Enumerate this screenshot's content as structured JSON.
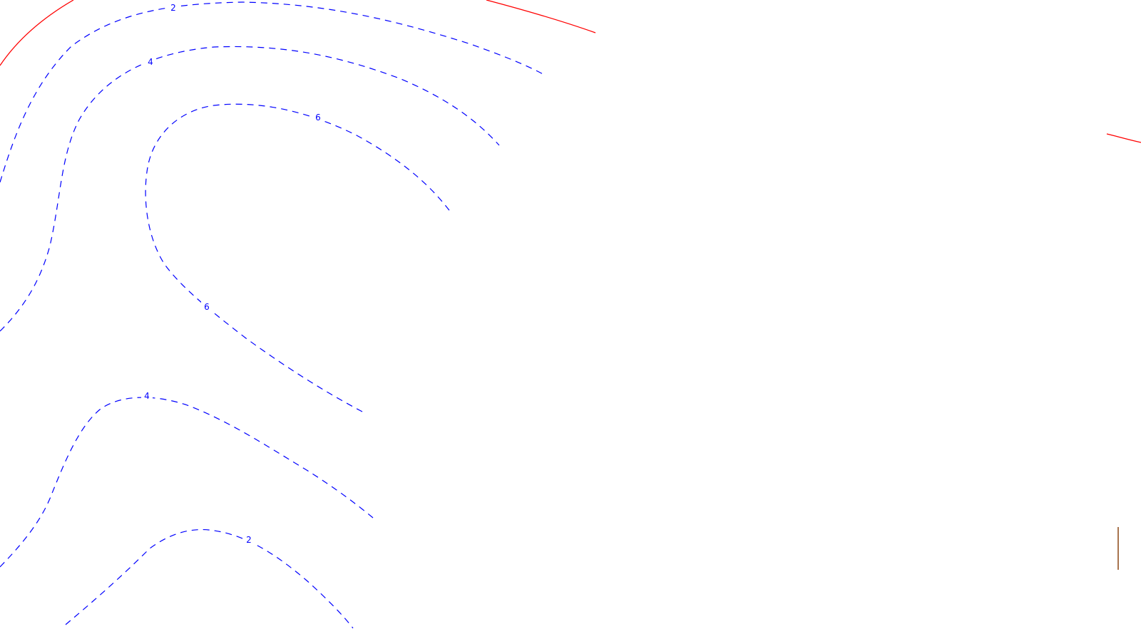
{
  "colors": {
    "background": "#ffffff",
    "negative_contour": "#0000ff",
    "positive_contour": "#ff0000",
    "edge_mark": "#8b4513"
  },
  "contours": {
    "blue_dashed": {
      "line_style": "dashed",
      "color": "#0000ff",
      "labels": [
        "2",
        "4",
        "6",
        "6",
        "4",
        "2"
      ]
    },
    "red_solid": {
      "line_style": "solid",
      "color": "#ff0000",
      "labels": []
    }
  }
}
